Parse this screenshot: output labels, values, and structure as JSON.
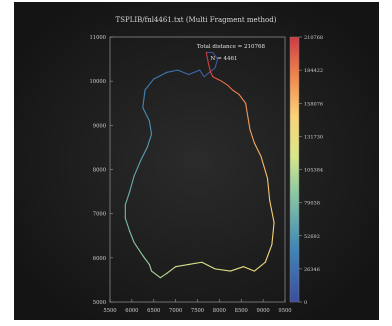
{
  "chart_data": {
    "type": "line",
    "title": "TSPLIB/fnl4461.txt (Multi Fragment method)",
    "annotations": [
      "Total distance = 210768",
      "N = 4461"
    ],
    "xlim": [
      5500,
      9500
    ],
    "ylim": [
      5000,
      11000
    ],
    "x_ticks": [
      5500,
      6000,
      6500,
      7000,
      7500,
      8000,
      8500,
      9000,
      9500
    ],
    "y_ticks": [
      5000,
      6000,
      7000,
      8000,
      9000,
      10000,
      11000
    ],
    "x_tick_labels": [
      "5500",
      "6000",
      "6500",
      "7000",
      "7500",
      "8000",
      "8500",
      "9000",
      "9500"
    ],
    "y_tick_labels": [
      "5000",
      "6000",
      "7000",
      "8000",
      "9000",
      "10000",
      "11000"
    ],
    "colorbar": {
      "min": 0,
      "max": 210768,
      "ticks": [
        0,
        26346,
        52692,
        79038,
        105384,
        131730,
        158076,
        184422,
        210768
      ],
      "tick_labels": [
        "0",
        "26346",
        "52692",
        "79038",
        "105384",
        "131730",
        "158076",
        "184422",
        "210768"
      ]
    },
    "tour_outline": {
      "description_units": "data",
      "x": [
        7700,
        7850,
        7960,
        7900,
        7650,
        7550,
        7300,
        7050,
        6800,
        6500,
        6300,
        6250,
        6400,
        6450,
        6350,
        6200,
        6050,
        5950,
        5850,
        5850,
        5950,
        6050,
        6250,
        6400,
        6450,
        6650,
        6800,
        7000,
        7300,
        7600,
        7900,
        8250,
        8550,
        8800,
        9050,
        9200,
        9250,
        9150,
        9100,
        8950,
        8800,
        8700,
        8650,
        8600,
        8450,
        8300,
        8200,
        8050,
        7950,
        7850,
        7800,
        7750,
        7700
      ],
      "y": [
        10650,
        10650,
        10500,
        10300,
        10100,
        10250,
        10150,
        10250,
        10200,
        10050,
        9800,
        9400,
        9100,
        8800,
        8500,
        8200,
        7850,
        7500,
        7200,
        6900,
        6600,
        6350,
        6050,
        5850,
        5700,
        5550,
        5650,
        5800,
        5850,
        5900,
        5750,
        5700,
        5800,
        5700,
        5900,
        6300,
        6800,
        7300,
        7800,
        8300,
        8600,
        8900,
        9200,
        9500,
        9700,
        9800,
        9900,
        10000,
        10050,
        10100,
        10200,
        10400,
        10650
      ],
      "color_start_end": [
        0,
        210768
      ]
    },
    "grid": false,
    "legend": "colorbar-right"
  }
}
